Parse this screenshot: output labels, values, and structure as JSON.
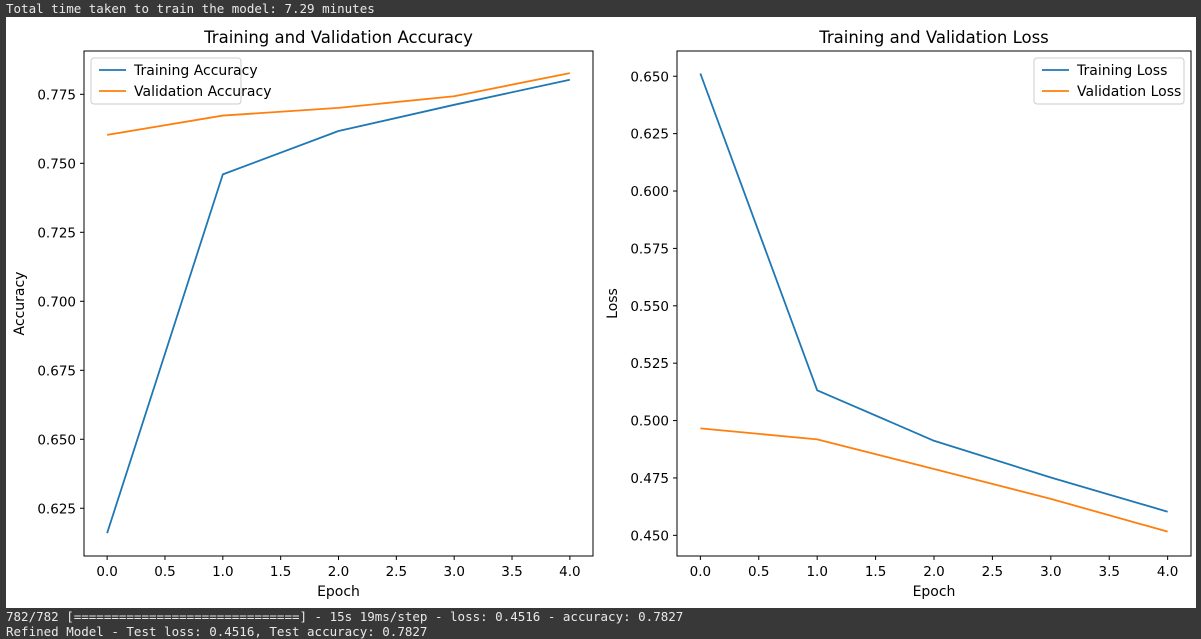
{
  "console": {
    "header": "Total time taken to train the model: 7.29 minutes",
    "progress_line": "782/782 [==============================] - 15s 19ms/step - loss: 0.4516 - accuracy: 0.7827",
    "result_line": "Refined Model - Test loss: 0.4516, Test accuracy: 0.7827"
  },
  "colors": {
    "training": "#1f77b4",
    "validation": "#ff7f0e",
    "console_bg": "#383838",
    "console_text": "#e8e8e8"
  },
  "chart_data": [
    {
      "type": "line",
      "title": "Training and Validation Accuracy",
      "xlabel": "Epoch",
      "ylabel": "Accuracy",
      "x": [
        0,
        1,
        2,
        3,
        4
      ],
      "xticks": [
        "0.0",
        "0.5",
        "1.0",
        "1.5",
        "2.0",
        "2.5",
        "3.0",
        "3.5",
        "4.0"
      ],
      "yticks": [
        "0.625",
        "0.650",
        "0.675",
        "0.700",
        "0.725",
        "0.750",
        "0.775"
      ],
      "xlim": [
        -0.2,
        4.2
      ],
      "ylim": [
        0.6077,
        0.7907
      ],
      "legend_position": "upper-left",
      "grid": false,
      "series": [
        {
          "name": "Training Accuracy",
          "color": "#1f77b4",
          "values": [
            0.616,
            0.746,
            0.7617,
            0.7712,
            0.7803
          ]
        },
        {
          "name": "Validation Accuracy",
          "color": "#ff7f0e",
          "values": [
            0.7603,
            0.7673,
            0.7701,
            0.7743,
            0.7827
          ]
        }
      ]
    },
    {
      "type": "line",
      "title": "Training and Validation Loss",
      "xlabel": "Epoch",
      "ylabel": "Loss",
      "x": [
        0,
        1,
        2,
        3,
        4
      ],
      "xticks": [
        "0.0",
        "0.5",
        "1.0",
        "1.5",
        "2.0",
        "2.5",
        "3.0",
        "3.5",
        "4.0"
      ],
      "yticks": [
        "0.450",
        "0.475",
        "0.500",
        "0.525",
        "0.550",
        "0.575",
        "0.600",
        "0.625",
        "0.650"
      ],
      "xlim": [
        -0.2,
        4.2
      ],
      "ylim": [
        0.441,
        0.661
      ],
      "legend_position": "upper-right",
      "grid": false,
      "series": [
        {
          "name": "Training Loss",
          "color": "#1f77b4",
          "values": [
            0.6512,
            0.5132,
            0.4912,
            0.4752,
            0.4603
          ]
        },
        {
          "name": "Validation Loss",
          "color": "#ff7f0e",
          "values": [
            0.4966,
            0.4918,
            0.4789,
            0.4659,
            0.4516
          ]
        }
      ]
    }
  ]
}
